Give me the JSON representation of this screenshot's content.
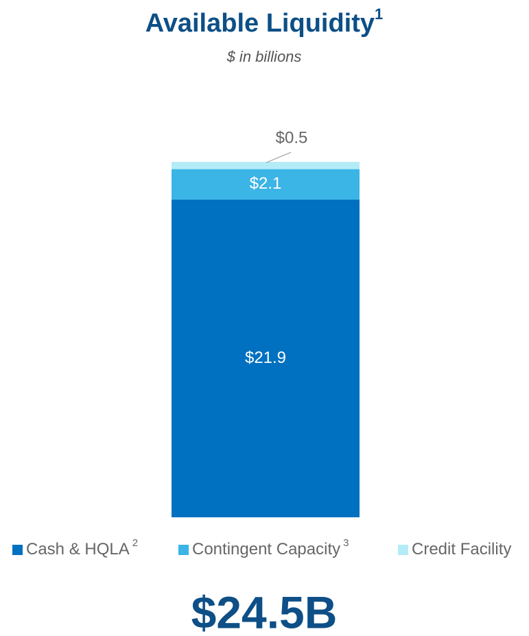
{
  "chart_data": {
    "type": "stacked_bar",
    "title": "Available Liquidity",
    "title_note": "1",
    "subtitle": "$ in billions",
    "series": [
      {
        "name": "Cash & HQLA",
        "note": "2",
        "color": "#0070c0",
        "values": [
          21.9
        ],
        "value_labels": [
          "$21.9"
        ]
      },
      {
        "name": "Contingent Capacity",
        "note": "3",
        "color": "#3bb4e6",
        "values": [
          2.1
        ],
        "value_labels": [
          "$2.1"
        ]
      },
      {
        "name": "Credit Facility",
        "color": "#b3ecf7",
        "values": [
          0.5
        ],
        "value_labels": [
          "$0.5"
        ]
      }
    ],
    "total_label": "$24.5B"
  }
}
